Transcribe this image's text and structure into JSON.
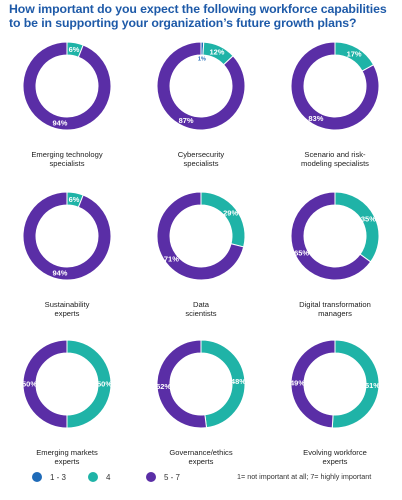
{
  "title_line1": "How important do you expect the following workforce capabilities",
  "title_line2": "to be in supporting your organization’s future growth plans?",
  "chart_data": {
    "type": "pie",
    "variant": "donut",
    "series": [
      {
        "name": "1 - 3",
        "color": "#1f6bb8"
      },
      {
        "name": "4",
        "color": "#1fb3a7"
      },
      {
        "name": "5 - 7",
        "color": "#5a2ea6"
      }
    ],
    "panels": [
      {
        "label": [
          "Emerging technology",
          "specialists"
        ],
        "values": {
          "1 - 3": null,
          "4": 6,
          "5 - 7": 94
        },
        "labels": {
          "1 - 3": "",
          "4": "6%",
          "5 - 7": "94%"
        }
      },
      {
        "label": [
          "Cybersecurity",
          "specialists"
        ],
        "values": {
          "1 - 3": 1,
          "4": 12,
          "5 - 7": 87
        },
        "labels": {
          "1 - 3": "1%",
          "4": "12%",
          "5 - 7": "87%"
        }
      },
      {
        "label": [
          "Scenario and risk-",
          "modeling specialists"
        ],
        "values": {
          "1 - 3": null,
          "4": 17,
          "5 - 7": 83
        },
        "labels": {
          "1 - 3": "",
          "4": "17%",
          "5 - 7": "83%"
        }
      },
      {
        "label": [
          "Sustainability",
          "experts"
        ],
        "values": {
          "1 - 3": null,
          "4": 6,
          "5 - 7": 94
        },
        "labels": {
          "1 - 3": "",
          "4": "6%",
          "5 - 7": "94%"
        }
      },
      {
        "label": [
          "Data",
          "scientists"
        ],
        "values": {
          "1 - 3": null,
          "4": 29,
          "5 - 7": 71
        },
        "labels": {
          "1 - 3": "",
          "4": "29%",
          "5 - 7": "71%"
        }
      },
      {
        "label": [
          "Digital transformation",
          "managers"
        ],
        "values": {
          "1 - 3": null,
          "4": 35,
          "5 - 7": 65
        },
        "labels": {
          "1 - 3": "",
          "4": "35%",
          "5 - 7": "65%"
        }
      },
      {
        "label": [
          "Emerging markets",
          "experts"
        ],
        "values": {
          "1 - 3": null,
          "4": 50,
          "5 - 7": 50
        },
        "labels": {
          "1 - 3": "",
          "4": "50%",
          "5 - 7": "50%"
        }
      },
      {
        "label": [
          "Governance/ethics",
          "experts"
        ],
        "values": {
          "1 - 3": null,
          "4": 48,
          "5 - 7": 52
        },
        "labels": {
          "1 - 3": "",
          "4": "48%",
          "5 - 7": "52%"
        }
      },
      {
        "label": [
          "Evolving workforce",
          "experts"
        ],
        "values": {
          "1 - 3": null,
          "4": 51,
          "5 - 7": 49
        },
        "labels": {
          "1 - 3": "",
          "4": "51%",
          "5 - 7": "49%"
        }
      }
    ],
    "legend": {
      "items": [
        "1 - 3",
        "4",
        "5 - 7"
      ],
      "note": "1= not important at all;  7= highly important",
      "placement": "bottom"
    }
  }
}
